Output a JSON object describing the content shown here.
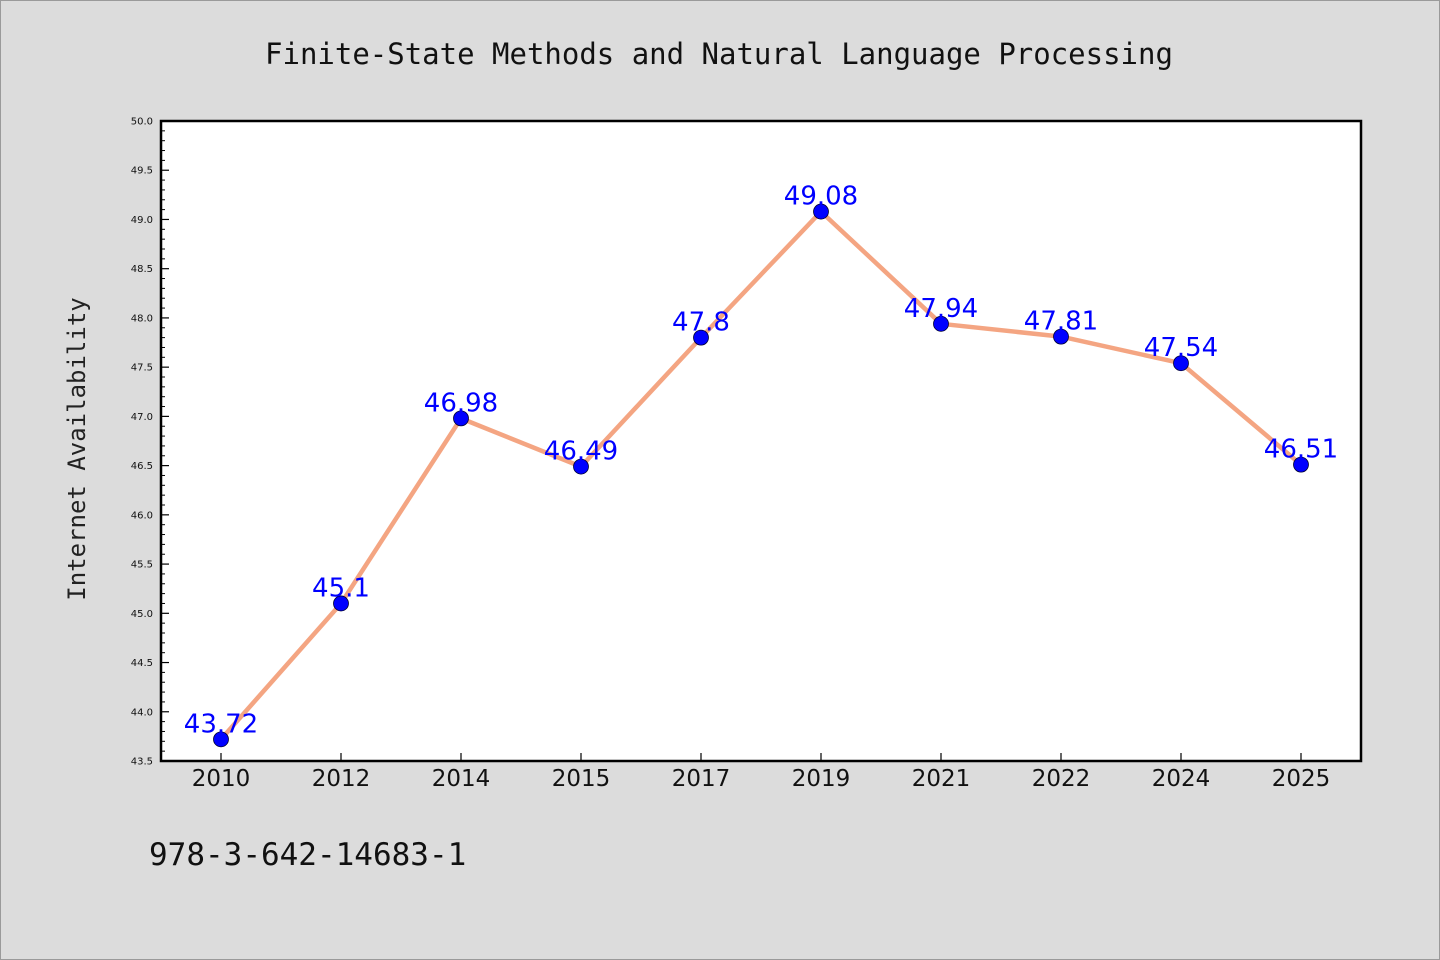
{
  "chart_data": {
    "type": "line",
    "title": "Finite-State Methods and Natural Language Processing",
    "xlabel": "",
    "ylabel": "Internet Availability",
    "categories": [
      "2010",
      "2012",
      "2014",
      "2015",
      "2017",
      "2019",
      "2021",
      "2022",
      "2024",
      "2025"
    ],
    "series": [
      {
        "values": [
          43.72,
          45.1,
          46.98,
          46.49,
          47.8,
          49.08,
          47.94,
          47.81,
          47.54,
          46.51
        ]
      }
    ],
    "data_labels": [
      "43.72",
      "45.1",
      "46.98",
      "46.49",
      "47.8",
      "49.08",
      "47.94",
      "47.81",
      "47.54",
      "46.51"
    ],
    "ylim": [
      43.5,
      50.0
    ],
    "yticks": [
      "43.5",
      "44.0",
      "44.5",
      "45.0",
      "45.5",
      "46.0",
      "46.5",
      "47.0",
      "47.5",
      "48.0",
      "48.5",
      "49.0",
      "49.5",
      "50.0"
    ],
    "grid": false,
    "legend": "none",
    "colors": {
      "line": "#f4a582",
      "marker": "#0000ff",
      "data_label": "#0000ff",
      "plot_bg": "#ffffff",
      "page_bg": "#dcdcdc"
    }
  },
  "footer": {
    "caption": "978-3-642-14683-1"
  }
}
